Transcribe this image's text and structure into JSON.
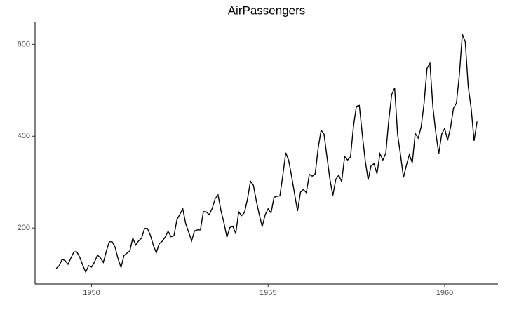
{
  "chart_data": {
    "type": "line",
    "title": "AirPassengers",
    "color": "#000000",
    "x": [
      1949.0,
      1949.083,
      1949.167,
      1949.25,
      1949.333,
      1949.417,
      1949.5,
      1949.583,
      1949.667,
      1949.75,
      1949.833,
      1949.917,
      1950.0,
      1950.083,
      1950.167,
      1950.25,
      1950.333,
      1950.417,
      1950.5,
      1950.583,
      1950.667,
      1950.75,
      1950.833,
      1950.917,
      1951.0,
      1951.083,
      1951.167,
      1951.25,
      1951.333,
      1951.417,
      1951.5,
      1951.583,
      1951.667,
      1951.75,
      1951.833,
      1951.917,
      1952.0,
      1952.083,
      1952.167,
      1952.25,
      1952.333,
      1952.417,
      1952.5,
      1952.583,
      1952.667,
      1952.75,
      1952.833,
      1952.917,
      1953.0,
      1953.083,
      1953.167,
      1953.25,
      1953.333,
      1953.417,
      1953.5,
      1953.583,
      1953.667,
      1953.75,
      1953.833,
      1953.917,
      1954.0,
      1954.083,
      1954.167,
      1954.25,
      1954.333,
      1954.417,
      1954.5,
      1954.583,
      1954.667,
      1954.75,
      1954.833,
      1954.917,
      1955.0,
      1955.083,
      1955.167,
      1955.25,
      1955.333,
      1955.417,
      1955.5,
      1955.583,
      1955.667,
      1955.75,
      1955.833,
      1955.917,
      1956.0,
      1956.083,
      1956.167,
      1956.25,
      1956.333,
      1956.417,
      1956.5,
      1956.583,
      1956.667,
      1956.75,
      1956.833,
      1956.917,
      1957.0,
      1957.083,
      1957.167,
      1957.25,
      1957.333,
      1957.417,
      1957.5,
      1957.583,
      1957.667,
      1957.75,
      1957.833,
      1957.917,
      1958.0,
      1958.083,
      1958.167,
      1958.25,
      1958.333,
      1958.417,
      1958.5,
      1958.583,
      1958.667,
      1958.75,
      1958.833,
      1958.917,
      1959.0,
      1959.083,
      1959.167,
      1959.25,
      1959.333,
      1959.417,
      1959.5,
      1959.583,
      1959.667,
      1959.75,
      1959.833,
      1959.917,
      1960.0,
      1960.083,
      1960.167,
      1960.25,
      1960.333,
      1960.417,
      1960.5,
      1960.583,
      1960.667,
      1960.75,
      1960.833,
      1960.917
    ],
    "values": [
      112,
      118,
      132,
      129,
      121,
      135,
      148,
      148,
      136,
      119,
      104,
      118,
      115,
      126,
      141,
      135,
      125,
      149,
      170,
      170,
      158,
      133,
      114,
      140,
      145,
      150,
      178,
      163,
      172,
      178,
      199,
      199,
      184,
      162,
      146,
      166,
      171,
      180,
      193,
      181,
      183,
      218,
      230,
      242,
      209,
      191,
      172,
      194,
      196,
      196,
      236,
      235,
      229,
      243,
      264,
      272,
      237,
      211,
      180,
      201,
      204,
      188,
      235,
      227,
      234,
      264,
      302,
      293,
      259,
      229,
      203,
      229,
      242,
      233,
      267,
      269,
      270,
      315,
      364,
      347,
      312,
      274,
      237,
      278,
      284,
      277,
      317,
      313,
      318,
      374,
      413,
      405,
      355,
      306,
      271,
      306,
      315,
      301,
      356,
      348,
      355,
      422,
      465,
      467,
      404,
      347,
      305,
      336,
      340,
      318,
      362,
      348,
      363,
      435,
      491,
      505,
      404,
      359,
      310,
      337,
      360,
      342,
      406,
      396,
      420,
      472,
      548,
      559,
      463,
      407,
      362,
      405,
      417,
      391,
      419,
      461,
      472,
      535,
      622,
      606,
      508,
      461,
      390,
      432
    ],
    "xlim": [
      1948.4,
      1961.51
    ],
    "xticks": [
      1950,
      1955,
      1960
    ],
    "ylim": [
      78.1,
      647.9
    ],
    "yticks": [
      200,
      400,
      600
    ]
  }
}
